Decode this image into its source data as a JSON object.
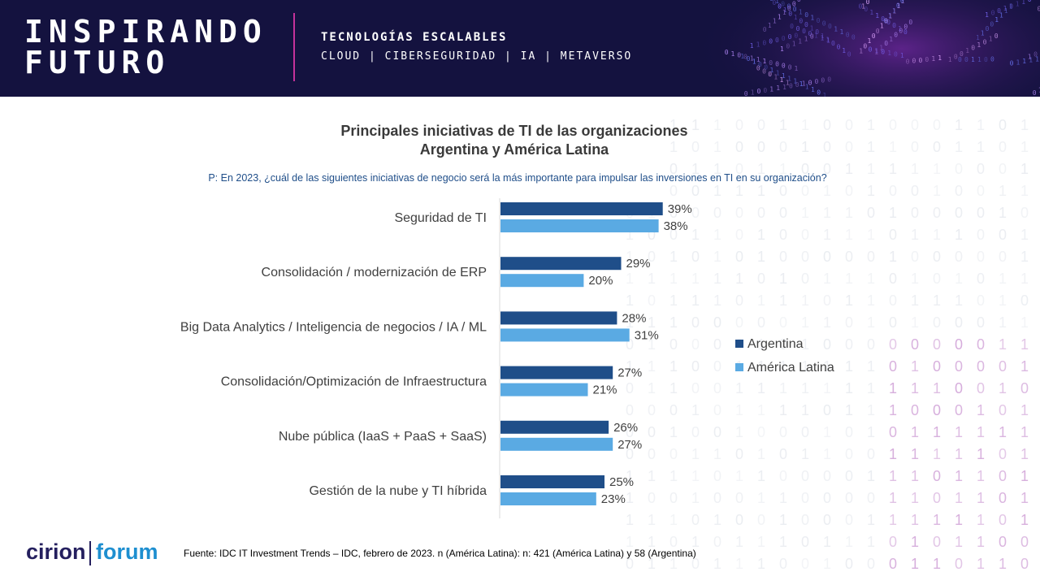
{
  "banner": {
    "title_line1": "INSPIRANDO",
    "title_line2": "FUTURO",
    "subtitle": "TECNOLOGÍAS ESCALABLES",
    "topics": "CLOUD | CIBERSEGURIDAD | IA | METAVERSO"
  },
  "chart_data": {
    "type": "bar",
    "orientation": "horizontal",
    "title": "Principales iniciativas de TI de las organizaciones",
    "subtitle": "Argentina y América Latina",
    "question": "P: En 2023, ¿cuál de las siguientes iniciativas de negocio será la más importante para impulsar las inversiones en TI en su organización?",
    "categories": [
      "Seguridad de TI",
      "Consolidación / modernización de ERP",
      "Big Data Analytics / Inteligencia de negocios / IA / ML",
      "Consolidación/Optimización de Infraestructura",
      "Nube pública (IaaS + PaaS + SaaS)",
      "Gestión de la nube y TI híbrida"
    ],
    "series": [
      {
        "name": "Argentina",
        "values": [
          39,
          29,
          28,
          27,
          26,
          25
        ],
        "labels": [
          "39%",
          "29%",
          "28%",
          "27%",
          "26%",
          "25%"
        ],
        "color": "#1f4e89"
      },
      {
        "name": "América Latina",
        "values": [
          38,
          20,
          31,
          21,
          27,
          23
        ],
        "labels": [
          "38%",
          "20%",
          "31%",
          "21%",
          "27%",
          "23%"
        ],
        "color": "#5aaae3"
      }
    ],
    "xlim": [
      0,
      40
    ],
    "legend_position": "right",
    "grid": false
  },
  "footer": {
    "logo_left": "cirion",
    "logo_right": "forum",
    "source": "Fuente: IDC IT Investment Trends – IDC, febrero de 2023. n (América Latina): n: 421 (América Latina) y 58 (Argentina)"
  },
  "colors": {
    "banner_bg": "#14123f",
    "accent": "#c4329a",
    "argentina": "#1f4e89",
    "america_latina": "#5aaae3"
  }
}
